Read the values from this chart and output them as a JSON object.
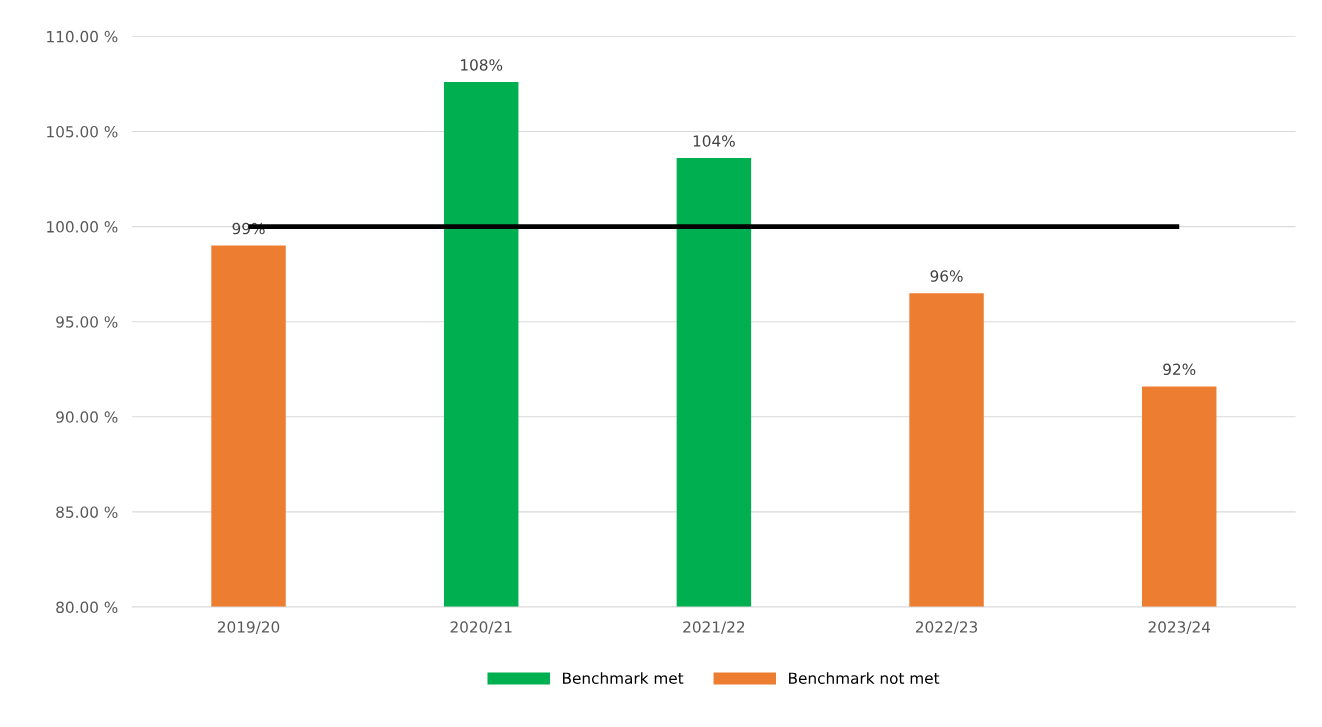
{
  "chart_data": {
    "type": "bar",
    "categories": [
      "2019/20",
      "2020/21",
      "2021/22",
      "2022/23",
      "2023/24"
    ],
    "series": [
      {
        "name": "Benchmark met",
        "color": "#00b050",
        "values": [
          null,
          107.6,
          103.6,
          null,
          null
        ],
        "value_labels": [
          null,
          "108%",
          "104%",
          null,
          null
        ]
      },
      {
        "name": "Benchmark not met",
        "color": "#ed7d31",
        "values": [
          99.0,
          null,
          null,
          96.5,
          91.6
        ],
        "value_labels": [
          "99%",
          null,
          null,
          "96%",
          "92%"
        ]
      }
    ],
    "ylim": [
      80,
      110
    ],
    "yticks": [
      {
        "value": 80,
        "label": "80.00 %"
      },
      {
        "value": 85,
        "label": "85.00 %"
      },
      {
        "value": 90,
        "label": "90.00 %"
      },
      {
        "value": 95,
        "label": "95.00 %"
      },
      {
        "value": 100,
        "label": "100.00 %"
      },
      {
        "value": 105,
        "label": "105.00 %"
      },
      {
        "value": 110,
        "label": "110.00 %"
      }
    ],
    "ref_lines": [
      {
        "axis": "y",
        "value": 100,
        "color": "#000000"
      }
    ],
    "grid": "y",
    "legend": "bottom"
  }
}
